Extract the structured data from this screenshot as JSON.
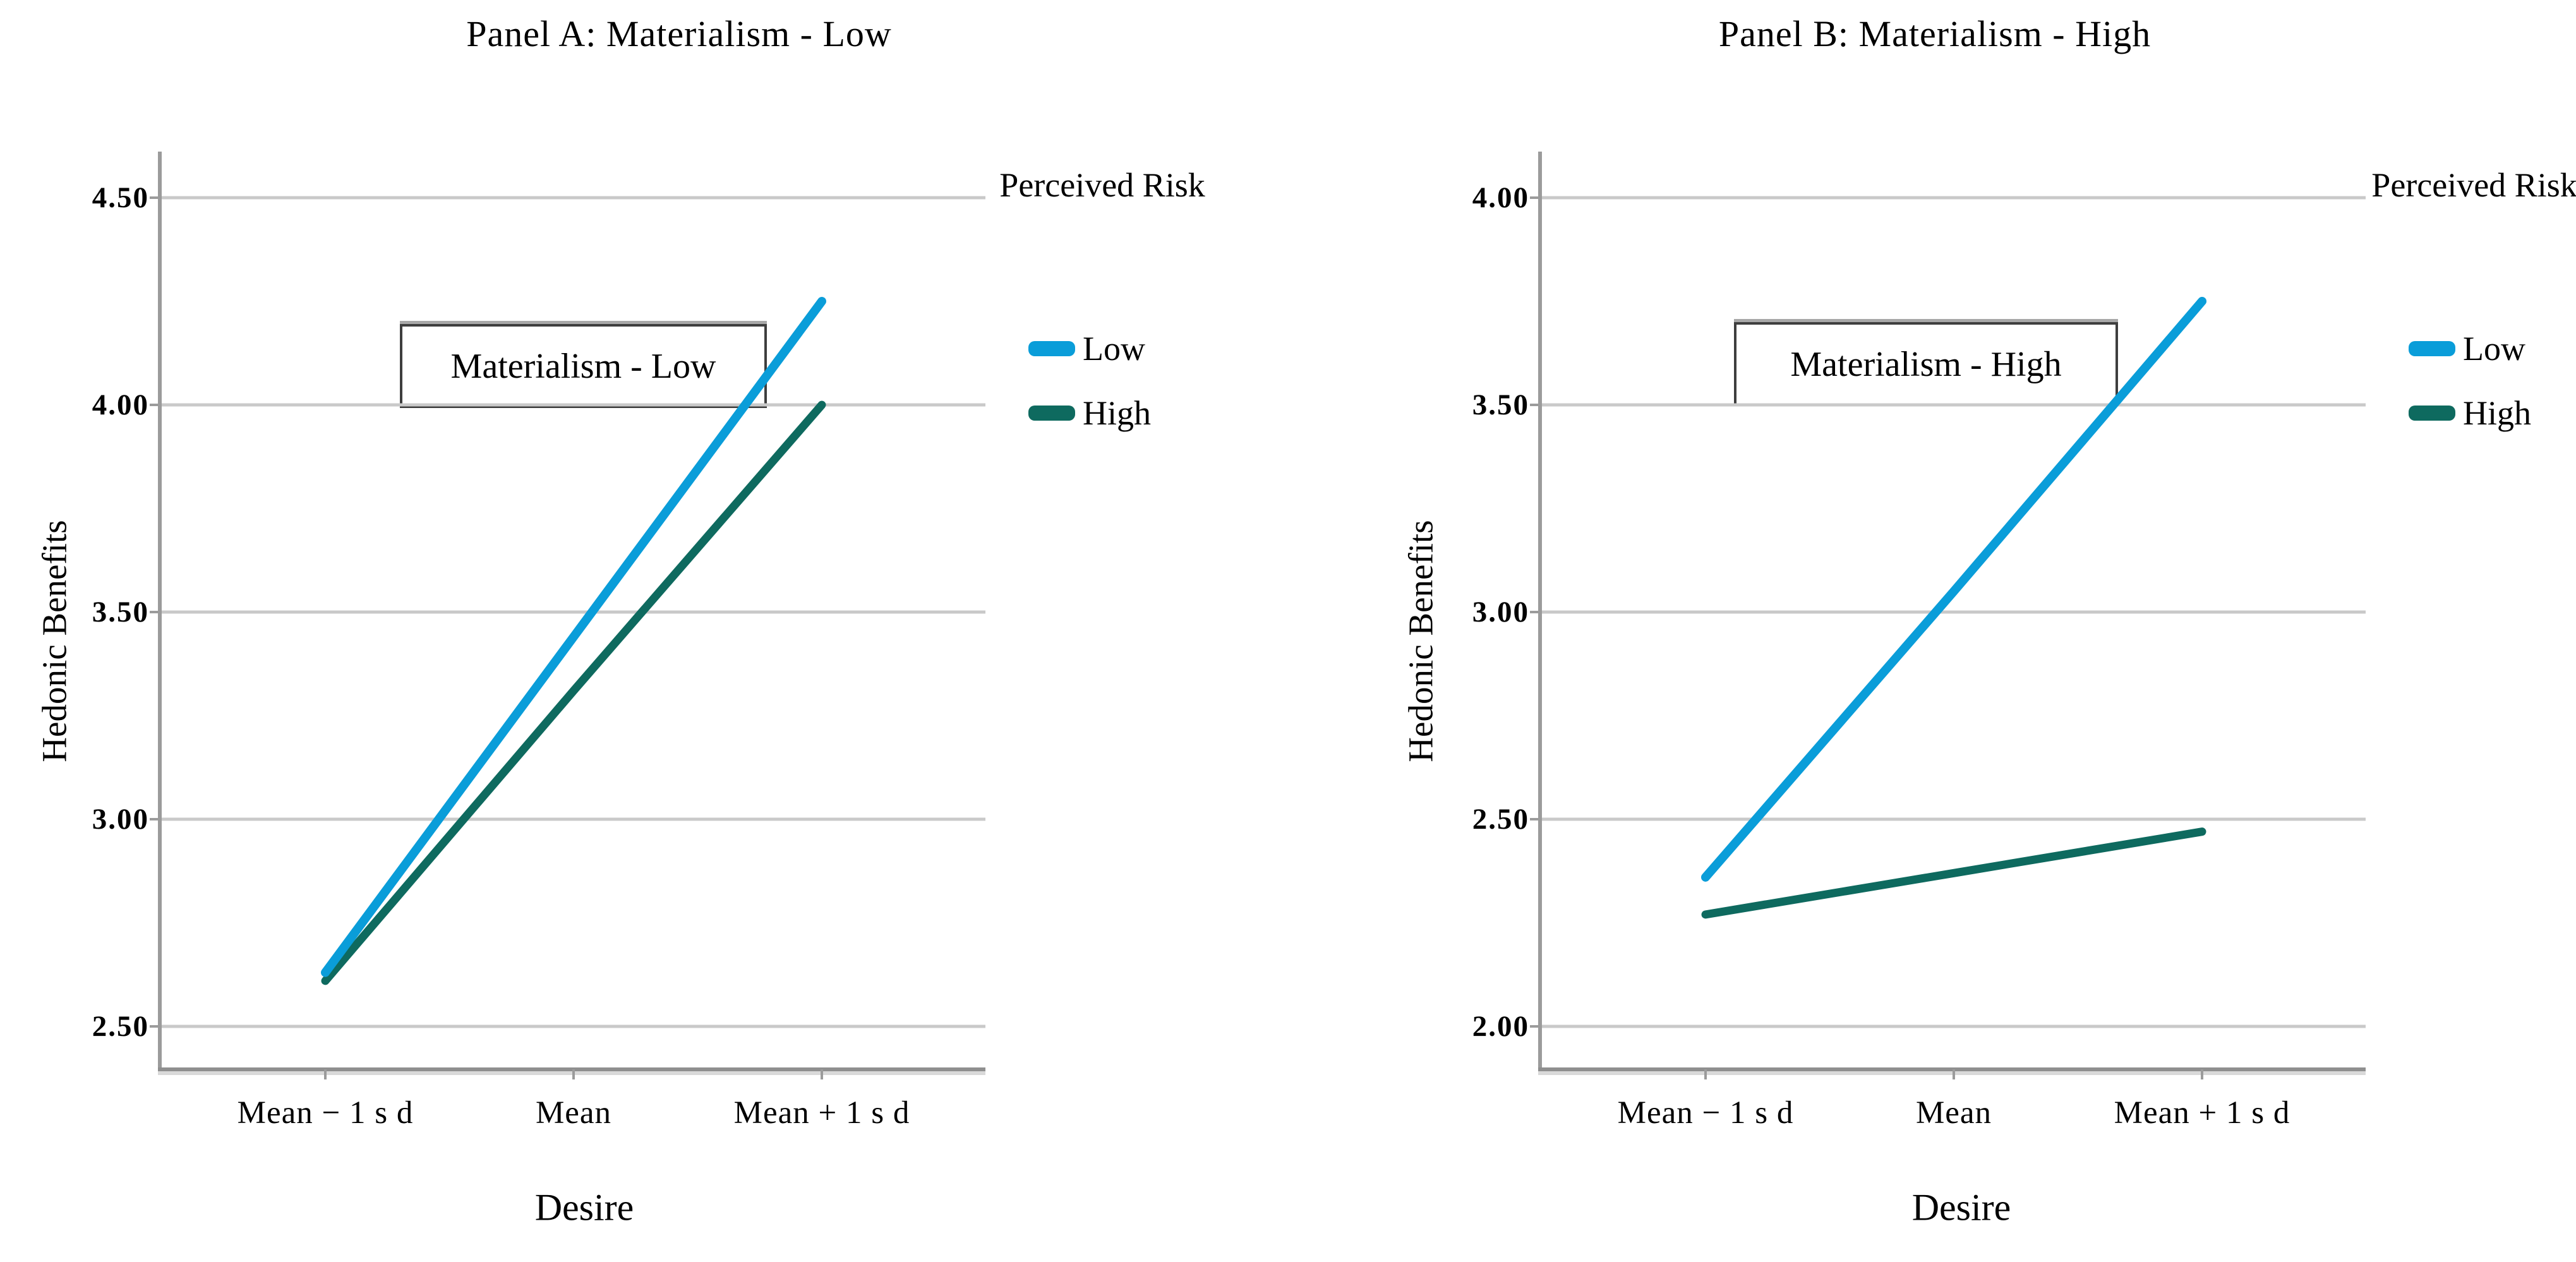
{
  "figure": {
    "background": "#ffffff",
    "axis_color": "#9b9b9b",
    "gridline_color": "#c9c9c9"
  },
  "chart_data": [
    {
      "type": "line",
      "panel": "A",
      "title": "Panel A: Materialism - Low",
      "xlabel": "Desire",
      "ylabel": "Hedonic Benefits",
      "categories": [
        "Mean − 1 s d",
        "Mean",
        "Mean + 1 s d"
      ],
      "yticks": [
        "4.50",
        "4.00",
        "3.50",
        "3.00",
        "2.50"
      ],
      "ytick_values": [
        4.5,
        4.0,
        3.5,
        3.0,
        2.5
      ],
      "ylim": [
        2.4,
        4.61
      ],
      "grid": true,
      "annotation": "Materialism - Low",
      "legend": {
        "title": "Perceived Risk",
        "position": "right"
      },
      "series": [
        {
          "name": "Low",
          "color": "#0a9dd9",
          "values": [
            2.63,
            3.44,
            4.25
          ]
        },
        {
          "name": "High",
          "color": "#0e6a5f",
          "values": [
            2.61,
            3.31,
            4.0
          ]
        }
      ]
    },
    {
      "type": "line",
      "panel": "B",
      "title": "Panel B: Materialism - High",
      "xlabel": "Desire",
      "ylabel": "Hedonic Benefits",
      "categories": [
        "Mean − 1 s d",
        "Mean",
        "Mean + 1 s d"
      ],
      "yticks": [
        "4.00",
        "3.50",
        "3.00",
        "2.50",
        "2.00"
      ],
      "ytick_values": [
        4.0,
        3.5,
        3.0,
        2.5,
        2.0
      ],
      "ylim": [
        1.92,
        4.11
      ],
      "grid": true,
      "annotation": "Materialism - High",
      "legend": {
        "title": "Perceived Risk",
        "position": "right"
      },
      "series": [
        {
          "name": "Low",
          "color": "#0a9dd9",
          "values": [
            2.36,
            3.05,
            3.75
          ]
        },
        {
          "name": "High",
          "color": "#0e6a5f",
          "values": [
            2.27,
            2.37,
            2.47
          ]
        }
      ]
    }
  ]
}
